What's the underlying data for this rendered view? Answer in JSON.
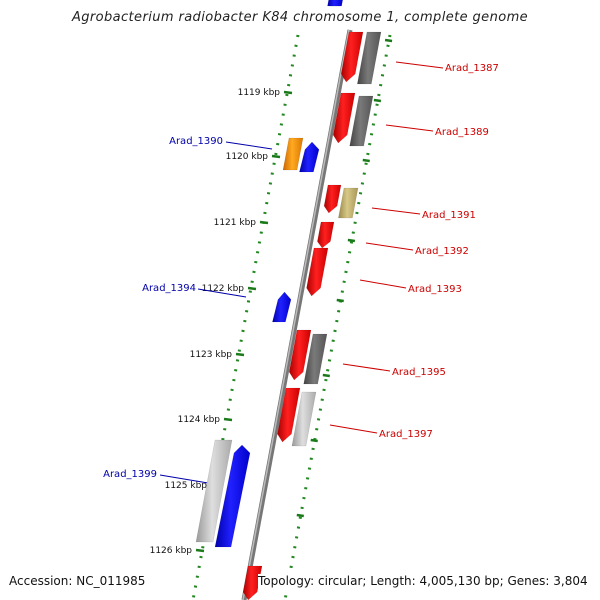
{
  "title": "Agrobacterium radiobacter K84 chromosome 1, complete genome",
  "footer": {
    "accession": "Accession: NC_011985",
    "summary": "Topology: circular; Length: 4,005,130 bp; Genes: 3,804"
  },
  "ticks": [
    "1119 kbp",
    "1120 kbp",
    "1121 kbp",
    "1122 kbp",
    "1123 kbp",
    "1124 kbp",
    "1125 kbp",
    "1126 kbp"
  ],
  "gene_labels": [
    {
      "name": "Arad_1387",
      "strand": "forward"
    },
    {
      "name": "Arad_1389",
      "strand": "forward"
    },
    {
      "name": "Arad_1390",
      "strand": "reverse"
    },
    {
      "name": "Arad_1391",
      "strand": "forward"
    },
    {
      "name": "Arad_1392",
      "strand": "forward"
    },
    {
      "name": "Arad_1393",
      "strand": "forward"
    },
    {
      "name": "Arad_1394",
      "strand": "reverse"
    },
    {
      "name": "Arad_1395",
      "strand": "forward"
    },
    {
      "name": "Arad_1397",
      "strand": "forward"
    },
    {
      "name": "Arad_1399",
      "strand": "reverse"
    }
  ],
  "colors": {
    "forward_gene": "#ff0000",
    "reverse_gene": "#0000ff",
    "forward_label": "#cc0000",
    "reverse_label": "#0000aa",
    "dark_gray_gene": "#666666",
    "light_gray_gene": "#c0c0c0",
    "orange_gene": "#ff9900",
    "khaki_gene": "#c8b870",
    "backbone": "#888888",
    "ruler_dots": "#228822"
  }
}
